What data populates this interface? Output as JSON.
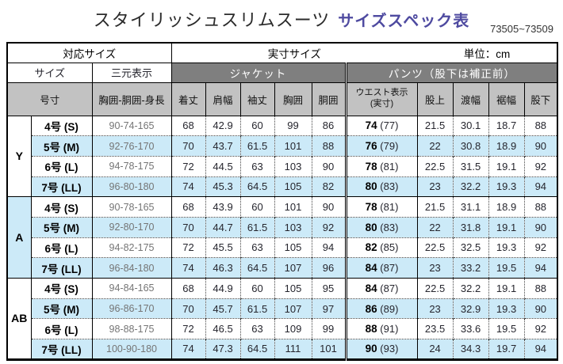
{
  "title": {
    "main": "スタイリッシュスリムスーツ",
    "sub": "サイズスペック表"
  },
  "product_code": "73505~73509",
  "colors": {
    "accent": "#4e4aa0",
    "header_dark": "#7f7f7f",
    "header_light": "#c2c2c2",
    "row_highlight": "#cceaf8"
  },
  "table": {
    "header": {
      "corresponding_size": "対応サイズ",
      "actual_size": "実寸サイズ",
      "unit": "単位：cm",
      "size": "サイズ",
      "three_dim": "三元表示",
      "jacket": "ジャケット",
      "pants": "パンツ（股下は補正前）",
      "goson": "号寸",
      "three_dim_detail": "胸囲-胴囲-身長",
      "jacket_cols": [
        "着丈",
        "肩幅",
        "袖丈",
        "胸囲",
        "胴囲"
      ],
      "waist_col": [
        "ウエスト表示",
        "(実寸)"
      ],
      "pants_cols": [
        "股上",
        "渡幅",
        "裾幅",
        "股下"
      ]
    },
    "sections": [
      {
        "label": "Y",
        "highlighted": false,
        "rows": [
          {
            "size": "4号 (S)",
            "three_dim": "90-74-165",
            "jacket": [
              "68",
              "42.9",
              "60",
              "99",
              "86"
            ],
            "waist_display": "74",
            "waist_actual": "(77)",
            "pants": [
              "21.5",
              "30.1",
              "18.7",
              "88"
            ]
          },
          {
            "size": "5号 (M)",
            "three_dim": "92-76-170",
            "jacket": [
              "70",
              "43.7",
              "61.5",
              "101",
              "88"
            ],
            "waist_display": "76",
            "waist_actual": "(79)",
            "pants": [
              "22",
              "30.8",
              "18.9",
              "90"
            ]
          },
          {
            "size": "6号 (L)",
            "three_dim": "94-78-175",
            "jacket": [
              "72",
              "44.5",
              "63",
              "103",
              "90"
            ],
            "waist_display": "78",
            "waist_actual": "(81)",
            "pants": [
              "22.5",
              "31.5",
              "19.1",
              "92"
            ]
          },
          {
            "size": "7号 (LL)",
            "three_dim": "96-80-180",
            "jacket": [
              "74",
              "45.3",
              "64.5",
              "105",
              "82"
            ],
            "waist_display": "80",
            "waist_actual": "(83)",
            "pants": [
              "23",
              "32.2",
              "19.3",
              "94"
            ]
          }
        ]
      },
      {
        "label": "A",
        "highlighted": true,
        "rows": [
          {
            "size": "4号 (S)",
            "three_dim": "90-78-165",
            "jacket": [
              "68",
              "43.9",
              "60",
              "101",
              "90"
            ],
            "waist_display": "78",
            "waist_actual": "(81)",
            "pants": [
              "21.5",
              "31.1",
              "18.9",
              "88"
            ]
          },
          {
            "size": "5号 (M)",
            "three_dim": "92-80-170",
            "jacket": [
              "70",
              "44.7",
              "61.5",
              "103",
              "92"
            ],
            "waist_display": "80",
            "waist_actual": "(83)",
            "pants": [
              "22",
              "31.8",
              "19.1",
              "90"
            ]
          },
          {
            "size": "6号 (L)",
            "three_dim": "94-82-175",
            "jacket": [
              "72",
              "45.5",
              "63",
              "105",
              "94"
            ],
            "waist_display": "82",
            "waist_actual": "(85)",
            "pants": [
              "22.5",
              "32.5",
              "19.3",
              "92"
            ]
          },
          {
            "size": "7号 (LL)",
            "three_dim": "96-84-180",
            "jacket": [
              "74",
              "46.3",
              "64.5",
              "107",
              "96"
            ],
            "waist_display": "84",
            "waist_actual": "(87)",
            "pants": [
              "23",
              "33.2",
              "19.5",
              "94"
            ]
          }
        ]
      },
      {
        "label": "AB",
        "highlighted": false,
        "rows": [
          {
            "size": "4号 (S)",
            "three_dim": "94-84-165",
            "jacket": [
              "68",
              "44.9",
              "60",
              "105",
              "95"
            ],
            "waist_display": "84",
            "waist_actual": "(87)",
            "pants": [
              "22.5",
              "32.2",
              "19.1",
              "88"
            ]
          },
          {
            "size": "5号 (M)",
            "three_dim": "96-86-170",
            "jacket": [
              "70",
              "45.7",
              "61.5",
              "107",
              "97"
            ],
            "waist_display": "86",
            "waist_actual": "(89)",
            "pants": [
              "23",
              "32.9",
              "19.3",
              "90"
            ]
          },
          {
            "size": "6号 (L)",
            "three_dim": "98-88-175",
            "jacket": [
              "72",
              "46.5",
              "63",
              "109",
              "99"
            ],
            "waist_display": "88",
            "waist_actual": "(91)",
            "pants": [
              "23.5",
              "33.6",
              "19.5",
              "92"
            ]
          },
          {
            "size": "7号 (LL)",
            "three_dim": "100-90-180",
            "jacket": [
              "74",
              "47.3",
              "64.5",
              "111",
              "101"
            ],
            "waist_display": "90",
            "waist_actual": "(93)",
            "pants": [
              "24",
              "34.3",
              "19.7",
              "94"
            ]
          }
        ]
      }
    ]
  }
}
